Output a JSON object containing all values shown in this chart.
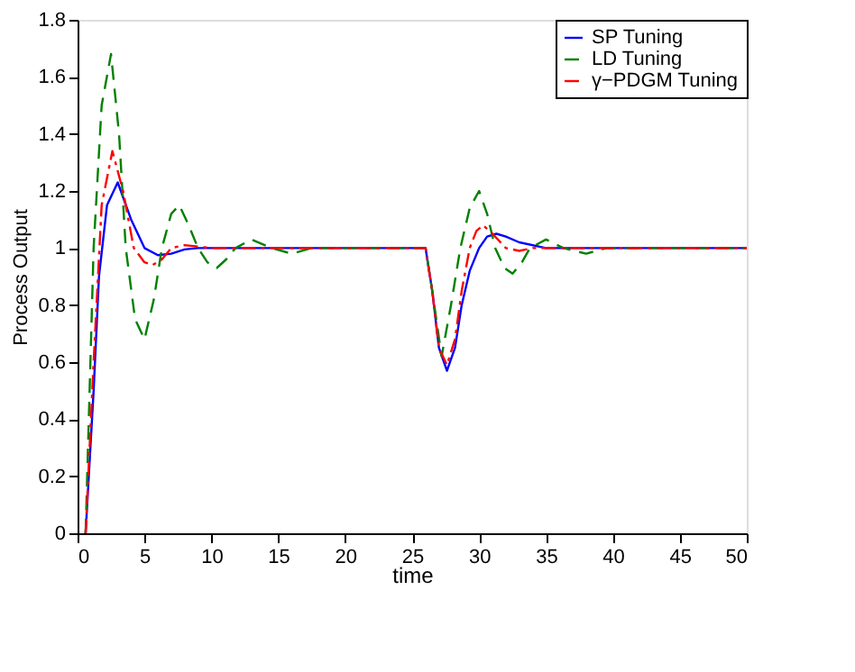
{
  "chart_data": {
    "type": "line",
    "xlabel": "time",
    "ylabel": "Process Output",
    "xlim": [
      0,
      50
    ],
    "xticks": [
      0,
      5,
      10,
      15,
      20,
      25,
      30,
      35,
      40,
      45,
      50
    ],
    "ylim": [
      0,
      1.8
    ],
    "yticks": [
      0,
      0.2,
      0.4,
      0.6,
      0.8,
      1,
      1.2,
      1.4,
      1.6,
      1.8
    ],
    "grid": false,
    "legend": "top right",
    "marker": "none",
    "series": [
      {
        "name": "SP Tuning",
        "color": "#0000ff",
        "line_style": "solid",
        "x": [
          0.6,
          1.2,
          1.6,
          2.2,
          3,
          4,
          5,
          6,
          7,
          8,
          9,
          26,
          26.5,
          27,
          27.6,
          28.2,
          28.7,
          29.3,
          30,
          30.6,
          31.3,
          32,
          33,
          35,
          50
        ],
        "values": [
          0,
          0.5,
          0.9,
          1.15,
          1.23,
          1.1,
          1.0,
          0.975,
          0.98,
          0.995,
          1.0,
          1.0,
          0.85,
          0.65,
          0.57,
          0.65,
          0.8,
          0.92,
          1.0,
          1.04,
          1.05,
          1.04,
          1.02,
          1.0,
          1.0
        ]
      },
      {
        "name": "LD Tuning",
        "color": "#008000",
        "line_style": "dashed",
        "x": [
          0.6,
          1.2,
          1.8,
          2.5,
          3.1,
          3.6,
          4.3,
          5,
          5.7,
          6.3,
          7,
          7.6,
          8.3,
          9,
          9.7,
          10.4,
          11.1,
          11.8,
          13,
          14.5,
          16,
          17.5,
          26,
          26.5,
          27.2,
          27.9,
          28.6,
          29.3,
          30,
          30.6,
          31.2,
          31.9,
          32.5,
          33.2,
          33.8,
          35,
          36.3,
          38,
          39.5,
          50
        ],
        "values": [
          0,
          1.0,
          1.5,
          1.68,
          1.4,
          1.0,
          0.75,
          0.68,
          0.82,
          1.0,
          1.12,
          1.15,
          1.08,
          1.0,
          0.95,
          0.93,
          0.96,
          1.0,
          1.03,
          1.0,
          0.98,
          1.0,
          1.0,
          0.85,
          0.62,
          0.8,
          1.0,
          1.14,
          1.2,
          1.12,
          1.0,
          0.93,
          0.91,
          0.95,
          1.0,
          1.03,
          1.0,
          0.98,
          1.0,
          1.0
        ]
      },
      {
        "name": "γ−PDGM Tuning",
        "color": "#ff0000",
        "line_style": "dashdot",
        "x": [
          0.6,
          1.2,
          1.8,
          2.6,
          3.4,
          4.2,
          5,
          5.6,
          6.3,
          7,
          8,
          10,
          26,
          26.5,
          27,
          27.6,
          28.2,
          28.7,
          29.3,
          29.8,
          30.3,
          31,
          32,
          33,
          34,
          50
        ],
        "values": [
          0,
          0.6,
          1.15,
          1.34,
          1.2,
          1.0,
          0.95,
          0.94,
          0.96,
          1.0,
          1.01,
          1.0,
          1.0,
          0.85,
          0.65,
          0.59,
          0.68,
          0.85,
          1.0,
          1.06,
          1.08,
          1.05,
          1.0,
          0.99,
          1.0,
          1.0
        ]
      }
    ]
  }
}
